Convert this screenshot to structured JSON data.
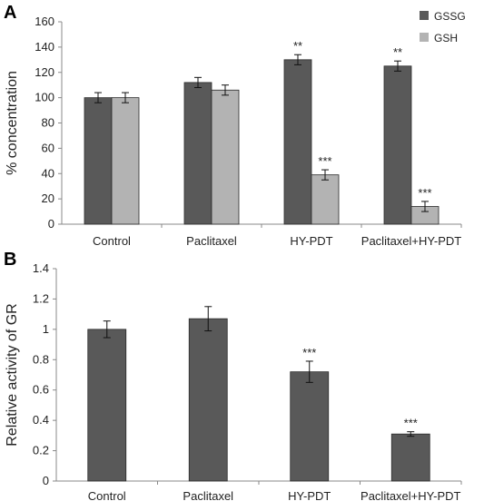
{
  "chart_data": [
    {
      "panel": "A",
      "type": "bar",
      "ylabel": "% concentration",
      "ylim": [
        0,
        160
      ],
      "ytick_step": 20,
      "grid": false,
      "legend_position": "top-right",
      "categories": [
        "Control",
        "Paclitaxel",
        "HY-PDT",
        "Paclitaxel+HY-PDT"
      ],
      "series": [
        {
          "name": "GSSG",
          "color": "#595959",
          "values": [
            100,
            112,
            130,
            125
          ],
          "errors": [
            4,
            4,
            4,
            4
          ],
          "significance": [
            "",
            "",
            "**",
            "**"
          ]
        },
        {
          "name": "GSH",
          "color": "#b3b3b3",
          "values": [
            100,
            106,
            39,
            14
          ],
          "errors": [
            4,
            4,
            4,
            4
          ],
          "significance": [
            "",
            "",
            "***",
            "***"
          ]
        }
      ]
    },
    {
      "panel": "B",
      "type": "bar",
      "ylabel": "Relative activity of GR",
      "ylim": [
        0,
        1.4
      ],
      "ytick_step": 0.2,
      "grid": false,
      "categories": [
        "Control",
        "Paclitaxel",
        "HY-PDT",
        "Paclitaxel+HY-PDT"
      ],
      "series": [
        {
          "color": "#595959",
          "values": [
            1.0,
            1.07,
            0.72,
            0.31
          ],
          "errors": [
            0.055,
            0.08,
            0.07,
            0.015
          ],
          "significance": [
            "",
            "",
            "***",
            "***"
          ]
        }
      ]
    }
  ]
}
